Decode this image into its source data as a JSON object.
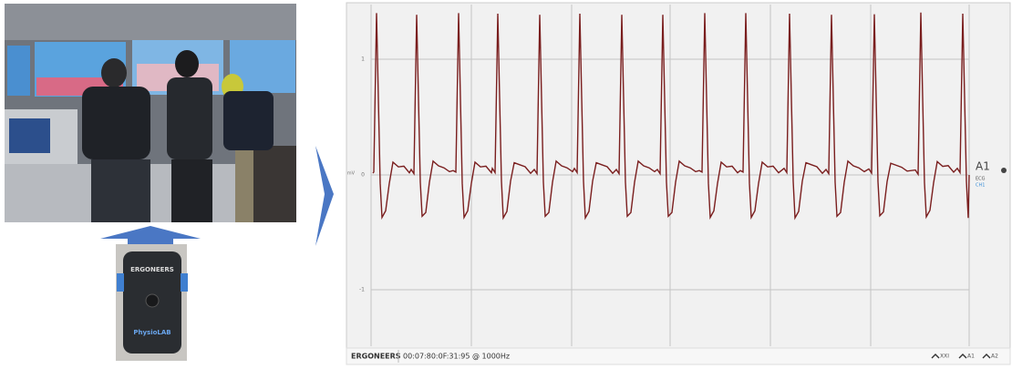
{
  "screenshot": {
    "axis": {
      "top": "1",
      "unit": "mV",
      "zero": "0",
      "bottom": "-1"
    },
    "channel": {
      "name": "A1",
      "type": "ECG",
      "sub": "CH1"
    },
    "status": {
      "brand": "ERGONEERS",
      "device": "00:07:80:0F:31:95 @ 1000Hz"
    },
    "buttons": [
      "XXI",
      "A1",
      "A2"
    ]
  },
  "device": {
    "brand": "ERGONEERS",
    "product": "PhysioLAB"
  }
}
